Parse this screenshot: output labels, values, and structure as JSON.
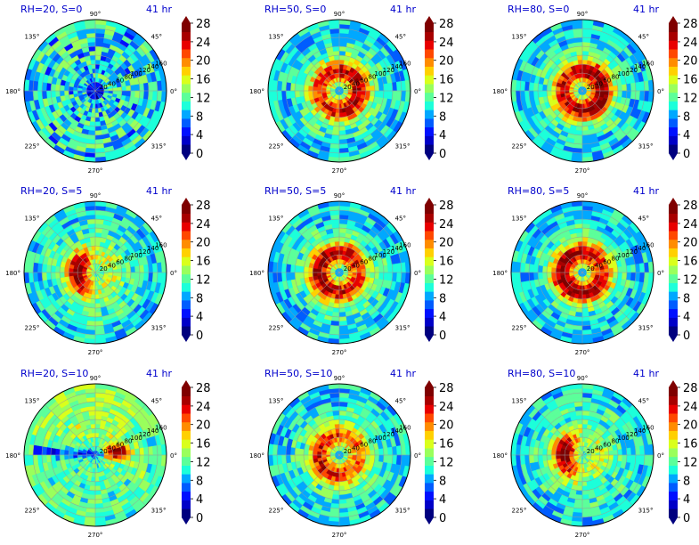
{
  "chart_data": [
    {
      "type": "heatmap",
      "title": "RH=20, S=0",
      "time_label": "41 hr",
      "structure": "weak",
      "core_value": 20,
      "shear_dir_deg": 0
    },
    {
      "type": "heatmap",
      "title": "RH=50, S=0",
      "time_label": "41 hr",
      "structure": "ring",
      "core_value": 26,
      "shear_dir_deg": 0
    },
    {
      "type": "heatmap",
      "title": "RH=80, S=0",
      "time_label": "41 hr",
      "structure": "ring",
      "core_value": 28,
      "shear_dir_deg": 0
    },
    {
      "type": "heatmap",
      "title": "RH=20, S=5",
      "time_label": "41 hr",
      "structure": "crescent",
      "core_value": 28,
      "shear_dir_deg": 180
    },
    {
      "type": "heatmap",
      "title": "RH=50, S=5",
      "time_label": "41 hr",
      "structure": "ring",
      "core_value": 27,
      "shear_dir_deg": 180
    },
    {
      "type": "heatmap",
      "title": "RH=80, S=5",
      "time_label": "41 hr",
      "structure": "ring",
      "core_value": 28,
      "shear_dir_deg": 200
    },
    {
      "type": "heatmap",
      "title": "RH=20, S=10",
      "time_label": "41 hr",
      "structure": "band",
      "core_value": 26,
      "shear_dir_deg": 10
    },
    {
      "type": "heatmap",
      "title": "RH=50, S=10",
      "time_label": "41 hr",
      "structure": "ring",
      "core_value": 24,
      "shear_dir_deg": 200
    },
    {
      "type": "heatmap",
      "title": "RH=80, S=10",
      "time_label": "41 hr",
      "structure": "crescent",
      "core_value": 27,
      "shear_dir_deg": 180
    }
  ],
  "angle_labels": [
    "0°",
    "45°",
    "90°",
    "135°",
    "180°",
    "225°",
    "270°",
    "315°"
  ],
  "radial_labels": [
    "20",
    "40",
    "60",
    "80",
    "100",
    "120",
    "140",
    "160"
  ],
  "colorbar": {
    "ticks": [
      "0",
      "4",
      "8",
      "12",
      "16",
      "20",
      "24",
      "28"
    ],
    "min": 0,
    "max": 28,
    "colors": [
      "#00007f",
      "#0000c8",
      "#0010ff",
      "#005cff",
      "#00a8ff",
      "#1cffda",
      "#5cff9a",
      "#9aff5c",
      "#daff1c",
      "#ffd000",
      "#ff8c00",
      "#ff4800",
      "#e80000",
      "#a80000",
      "#7f0000"
    ]
  }
}
